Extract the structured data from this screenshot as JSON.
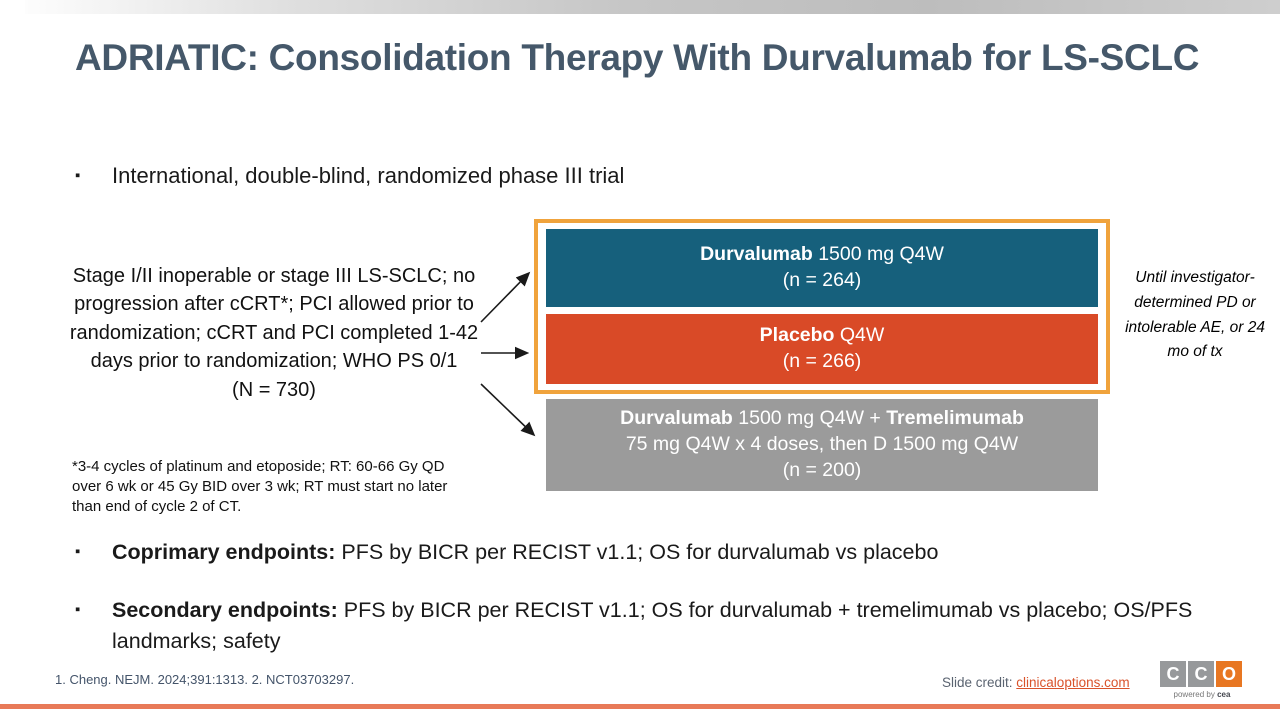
{
  "colors": {
    "title": "#45586a",
    "teal-arm": "#16607c",
    "red-arm": "#d94a27",
    "gray-arm": "#9b9b9b",
    "highlight-outline": "#f0a33c",
    "footer-text": "#44546a",
    "link": "#d9532b",
    "logo-gray": "#97999b",
    "logo-orange": "#e87722",
    "bottom-line": "#e87a58"
  },
  "icons": {
    "bullet": "▪"
  },
  "title": "ADRIATIC: Consolidation Therapy With Durvalumab for LS-SCLC",
  "intro_bullet": "International, double-blind, randomized phase III trial",
  "population": {
    "text": "Stage I/II inoperable or stage III LS-SCLC; no progression after cCRT*; PCI allowed prior to randomization; cCRT and PCI completed 1-42 days prior to randomization; WHO PS 0/1",
    "n_total": "(N = 730)",
    "footnote": "*3-4 cycles of platinum and etoposide; RT: 60-66 Gy QD over 6 wk or 45 Gy BID over 3 wk; RT must start no later than end of cycle 2 of CT."
  },
  "arms": [
    {
      "line1": [
        {
          "t": "Durvalumab",
          "b": true
        },
        {
          "t": " 1500 mg Q4W",
          "b": false
        }
      ],
      "line2": "(n = 264)"
    },
    {
      "line1": [
        {
          "t": "Placebo",
          "b": true
        },
        {
          "t": " Q4W",
          "b": false
        }
      ],
      "line2": "(n = 266)"
    },
    {
      "line1": [
        {
          "t": "Durvalumab",
          "b": true
        },
        {
          "t": " 1500 mg Q4W + ",
          "b": false
        },
        {
          "t": "Tremelimumab",
          "b": true
        }
      ],
      "line2": "75 mg Q4W x 4 doses, then D 1500 mg Q4W",
      "line3": "(n = 200)"
    }
  ],
  "duration_note": "Until investigator-determined PD or intolerable AE, or 24 mo of tx",
  "endpoints": [
    {
      "lead": "Coprimary endpoints:",
      "rest": " PFS by BICR per RECIST v1.1; OS for durvalumab vs placebo"
    },
    {
      "lead": "Secondary endpoints:",
      "rest": " PFS by BICR per RECIST v1.1; OS for durvalumab + tremelimumab vs placebo; OS/PFS landmarks; safety"
    }
  ],
  "footer": {
    "references": "1. Cheng. NEJM. 2024;391:1313. 2. NCT03703297.",
    "credit_label": "Slide credit: ",
    "credit_link": "clinicaloptions.com",
    "logo_letters": {
      "0": "C",
      "1": "C",
      "2": "O"
    },
    "logo_tagline_prefix": "powered by ",
    "logo_tagline_brand": "cea"
  }
}
